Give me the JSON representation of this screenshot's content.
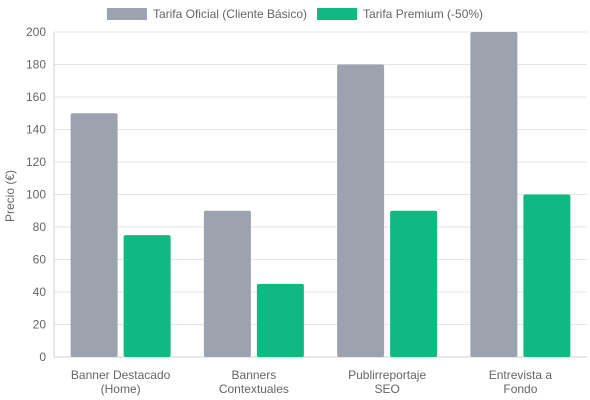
{
  "chart_data": {
    "type": "bar",
    "categories": [
      [
        "Banner Destacado",
        "(Home)"
      ],
      [
        "Banners",
        "Contextuales"
      ],
      [
        "Publirreportaje",
        "SEO"
      ],
      [
        "Entrevista a",
        "Fondo"
      ]
    ],
    "series": [
      {
        "name": "Tarifa Oficial (Cliente Básico)",
        "color": "#9ca3af",
        "values": [
          150,
          90,
          180,
          200
        ]
      },
      {
        "name": "Tarifa Premium (-50%)",
        "color": "#10b981",
        "values": [
          75,
          45,
          90,
          100
        ]
      }
    ],
    "ylabel": "Precio (€)",
    "ylim": [
      0,
      200
    ],
    "yticks": [
      0,
      20,
      40,
      60,
      80,
      100,
      120,
      140,
      160,
      180,
      200
    ],
    "grid": true,
    "legend": "top-center"
  }
}
